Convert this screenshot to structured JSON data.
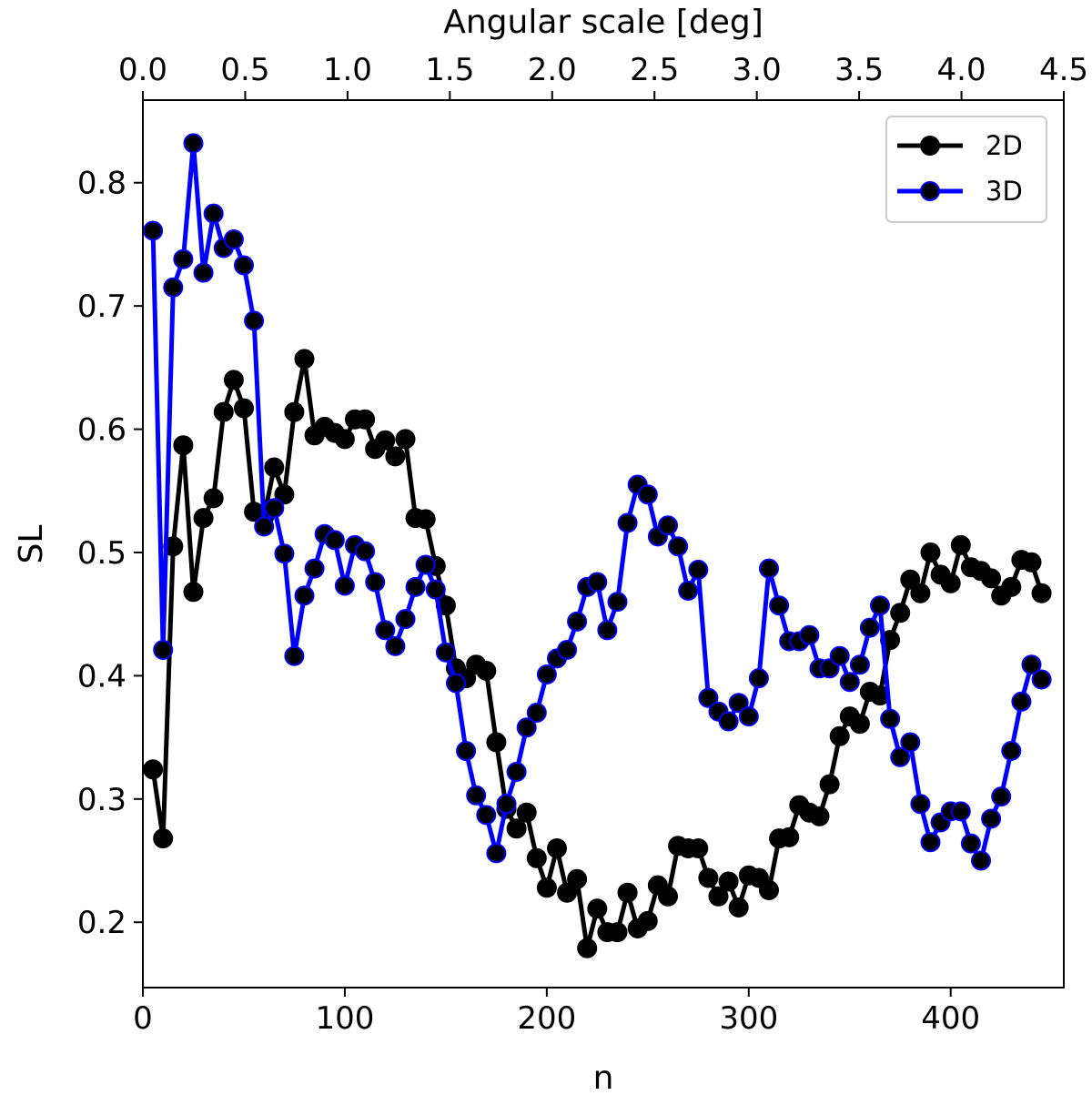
{
  "chart_data": {
    "type": "line",
    "xlabel": "n",
    "ylabel": "SL",
    "top_xlabel": "Angular scale [deg]",
    "xlim": [
      0,
      456
    ],
    "ylim": [
      0.147,
      0.867
    ],
    "x_ticks": [
      0,
      100,
      200,
      300,
      400
    ],
    "y_ticks": [
      0.2,
      0.3,
      0.4,
      0.5,
      0.6,
      0.7,
      0.8
    ],
    "top_xlim": [
      0,
      4.5
    ],
    "top_ticks": [
      "0.0",
      "0.5",
      "1.0",
      "1.5",
      "2.0",
      "2.5",
      "3.0",
      "3.5",
      "4.0",
      "4.5"
    ],
    "legend_position": "top-right",
    "grid": false,
    "x": [
      5,
      10,
      15,
      20,
      25,
      30,
      35,
      40,
      45,
      50,
      55,
      60,
      65,
      70,
      75,
      80,
      85,
      90,
      95,
      100,
      105,
      110,
      115,
      120,
      125,
      130,
      135,
      140,
      145,
      150,
      155,
      160,
      165,
      170,
      175,
      180,
      185,
      190,
      195,
      200,
      205,
      210,
      215,
      220,
      225,
      230,
      235,
      240,
      245,
      250,
      255,
      260,
      265,
      270,
      275,
      280,
      285,
      290,
      295,
      300,
      305,
      310,
      315,
      320,
      325,
      330,
      335,
      340,
      345,
      350,
      355,
      360,
      365,
      370,
      375,
      380,
      385,
      390,
      395,
      400,
      405,
      410,
      415,
      420,
      425,
      430,
      435,
      440,
      445
    ],
    "series": [
      {
        "name": "2D",
        "color": "#000000",
        "values": [
          0.324,
          0.268,
          0.505,
          0.587,
          0.468,
          0.528,
          0.544,
          0.614,
          0.64,
          0.617,
          0.533,
          0.529,
          0.569,
          0.547,
          0.614,
          0.657,
          0.595,
          0.602,
          0.597,
          0.592,
          0.608,
          0.608,
          0.584,
          0.591,
          0.578,
          0.592,
          0.528,
          0.527,
          0.489,
          0.457,
          0.406,
          0.398,
          0.409,
          0.404,
          0.346,
          0.292,
          0.276,
          0.289,
          0.252,
          0.228,
          0.26,
          0.224,
          0.235,
          0.179,
          0.211,
          0.192,
          0.192,
          0.224,
          0.195,
          0.201,
          0.23,
          0.221,
          0.262,
          0.26,
          0.26,
          0.236,
          0.221,
          0.233,
          0.212,
          0.238,
          0.236,
          0.226,
          0.268,
          0.269,
          0.295,
          0.289,
          0.286,
          0.312,
          0.351,
          0.367,
          0.361,
          0.387,
          0.384,
          0.429,
          0.451,
          0.478,
          0.467,
          0.5,
          0.482,
          0.475,
          0.506,
          0.488,
          0.485,
          0.479,
          0.465,
          0.472,
          0.494,
          0.492,
          0.467
        ]
      },
      {
        "name": "3D",
        "color": "#0000ff",
        "values": [
          0.761,
          0.421,
          0.715,
          0.738,
          0.832,
          0.727,
          0.775,
          0.747,
          0.754,
          0.733,
          0.688,
          0.521,
          0.536,
          0.499,
          0.416,
          0.465,
          0.487,
          0.515,
          0.51,
          0.473,
          0.506,
          0.501,
          0.476,
          0.437,
          0.424,
          0.446,
          0.472,
          0.49,
          0.47,
          0.419,
          0.394,
          0.339,
          0.303,
          0.287,
          0.256,
          0.296,
          0.322,
          0.358,
          0.37,
          0.401,
          0.414,
          0.421,
          0.444,
          0.472,
          0.476,
          0.437,
          0.46,
          0.524,
          0.555,
          0.547,
          0.513,
          0.522,
          0.505,
          0.469,
          0.486,
          0.382,
          0.371,
          0.363,
          0.378,
          0.367,
          0.398,
          0.487,
          0.457,
          0.428,
          0.428,
          0.433,
          0.406,
          0.406,
          0.416,
          0.395,
          0.409,
          0.439,
          0.457,
          0.365,
          0.334,
          0.346,
          0.296,
          0.265,
          0.281,
          0.29,
          0.29,
          0.264,
          0.25,
          0.284,
          0.302,
          0.339,
          0.379,
          0.409,
          0.397
        ]
      }
    ]
  }
}
